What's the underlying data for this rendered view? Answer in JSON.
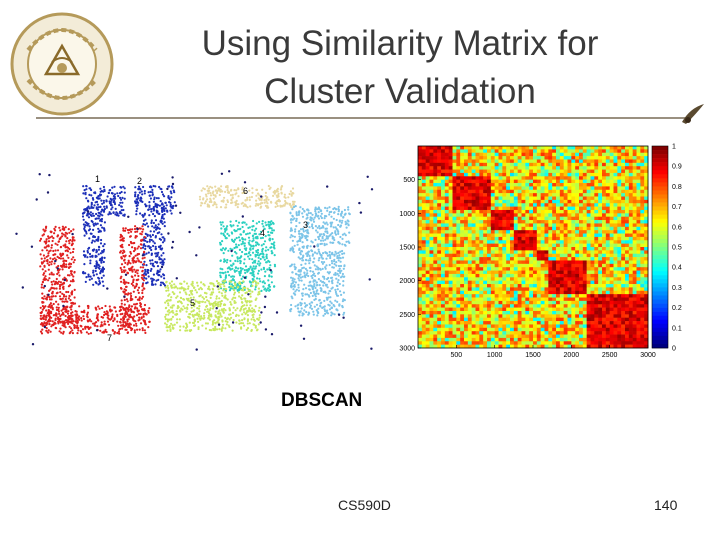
{
  "slide": {
    "title_line1": "Using Similarity Matrix for",
    "title_line2": "Cluster Validation",
    "caption": "DBSCAN",
    "footer": "CS590D",
    "page_number": "140"
  },
  "logo": {
    "icon": "university-seal-icon",
    "text": "purdue university"
  },
  "colors": {
    "title": "#3a3a3a",
    "rule": "#9a9080"
  },
  "chart_data": [
    {
      "type": "scatter",
      "cluster_labels": [
        "1",
        "2",
        "3",
        "4",
        "5",
        "6",
        "7"
      ],
      "cluster_colors": [
        "#1c2fb8",
        "#1c2fb8",
        "#7cc4e8",
        "#2ad0c0",
        "#c8e860",
        "#e8d8a0",
        "#e02020"
      ],
      "noise_color": "#1a1a6a"
    },
    {
      "type": "heatmap",
      "xticks": [
        "500",
        "1000",
        "1500",
        "2000",
        "2500",
        "3000"
      ],
      "yticks": [
        "500",
        "1000",
        "1500",
        "2000",
        "2500",
        "3000"
      ],
      "colorbar_ticks": [
        "1",
        "0.9",
        "0.8",
        "0.7",
        "0.6",
        "0.5",
        "0.4",
        "0.3",
        "0.2",
        "0.1",
        "0"
      ],
      "xlim": [
        0,
        3000
      ],
      "ylim": [
        0,
        3000
      ],
      "clim": [
        0,
        1
      ],
      "cluster_boundaries": [
        0,
        450,
        960,
        1250,
        1550,
        1700,
        2200,
        3000
      ]
    }
  ]
}
